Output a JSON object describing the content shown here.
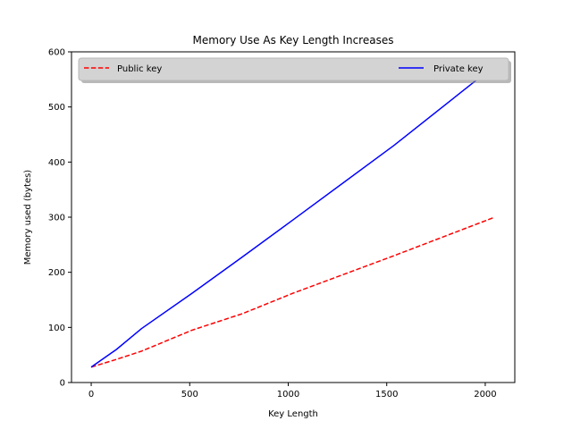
{
  "chart_data": {
    "type": "line",
    "title": "Memory Use As Key Length Increases",
    "xlabel": "Key Length",
    "ylabel": "Memory used (bytes)",
    "xlim": [
      -100,
      2150
    ],
    "ylim": [
      0,
      600
    ],
    "xticks": [
      0,
      500,
      1000,
      1500,
      2000
    ],
    "yticks": [
      0,
      100,
      200,
      300,
      400,
      500,
      600
    ],
    "grid": false,
    "legend": {
      "placement": "top",
      "ncol": 2,
      "shadow": true,
      "background": "#d3d3d3"
    },
    "series": [
      {
        "name": "Public key",
        "color": "#ff0000",
        "linestyle": "dashed",
        "x": [
          0,
          128,
          256,
          512,
          768,
          1024,
          1536,
          2048
        ],
        "y": [
          28,
          42,
          57,
          95,
          125,
          162,
          230,
          300
        ]
      },
      {
        "name": "Private key",
        "color": "#0000ff",
        "linestyle": "solid",
        "x": [
          0,
          128,
          256,
          512,
          768,
          1024,
          1536,
          2048
        ],
        "y": [
          28,
          60,
          98,
          162,
          228,
          295,
          430,
          575
        ]
      }
    ]
  }
}
